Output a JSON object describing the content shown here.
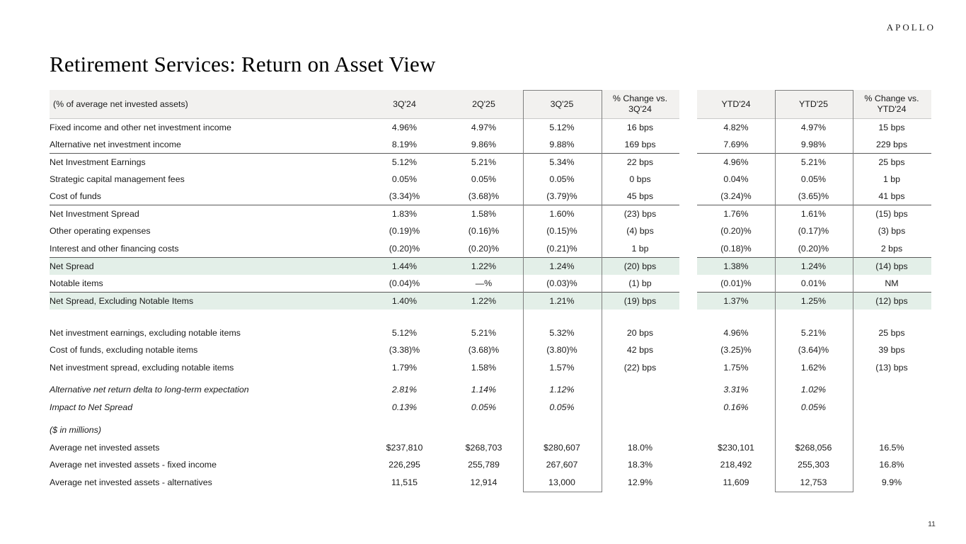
{
  "page": {
    "brand": "APOLLO",
    "title": "Retirement Services: Return on Asset View",
    "page_number": "11"
  },
  "colors": {
    "header_bg": "#f2f1ef",
    "highlight_green": "#e3efe8",
    "rule_dark": "#595959",
    "box_border": "#7f7f7f"
  },
  "table": {
    "header": {
      "label": "(% of average net invested assets)",
      "columns": [
        "3Q'24",
        "2Q'25",
        "3Q'25",
        "% Change vs. 3Q'24",
        "YTD'24",
        "YTD'25",
        "% Change vs. YTD'24"
      ]
    },
    "rows": [
      {
        "label": "Fixed income and other net investment income",
        "values": [
          "4.96%",
          "4.97%",
          "5.12%",
          "16 bps",
          "4.82%",
          "4.97%",
          "15 bps"
        ]
      },
      {
        "label": "Alternative net investment income",
        "values": [
          "8.19%",
          "9.86%",
          "9.88%",
          "169 bps",
          "7.69%",
          "9.98%",
          "229 bps"
        ]
      },
      {
        "label": "Net Investment Earnings",
        "bold_label": true,
        "topline": true,
        "values": [
          "5.12%",
          "5.21%",
          "5.34%",
          "22 bps",
          "4.96%",
          "5.21%",
          "25 bps"
        ]
      },
      {
        "label": "Strategic capital management fees",
        "values": [
          "0.05%",
          "0.05%",
          "0.05%",
          "0 bps",
          "0.04%",
          "0.05%",
          "1 bp"
        ]
      },
      {
        "label": "Cost of funds",
        "values": [
          "(3.34)%",
          "(3.68)%",
          "(3.79)%",
          "45 bps",
          "(3.24)%",
          "(3.65)%",
          "41 bps"
        ]
      },
      {
        "label": "Net Investment Spread",
        "bold_label": true,
        "bold_values": true,
        "topline": true,
        "values": [
          "1.83%",
          "1.58%",
          "1.60%",
          "(23) bps",
          "1.76%",
          "1.61%",
          "(15) bps"
        ]
      },
      {
        "label": "Other operating expenses",
        "values": [
          "(0.19)%",
          "(0.16)%",
          "(0.15)%",
          "(4) bps",
          "(0.20)%",
          "(0.17)%",
          "(3) bps"
        ]
      },
      {
        "label": "Interest and other financing costs",
        "values": [
          "(0.20)%",
          "(0.20)%",
          "(0.21)%",
          "1 bp",
          "(0.18)%",
          "(0.20)%",
          "2 bps"
        ]
      },
      {
        "label": "Net Spread",
        "bold_label": true,
        "bold_values": true,
        "green": true,
        "topline": true,
        "values": [
          "1.44%",
          "1.22%",
          "1.24%",
          "(20) bps",
          "1.38%",
          "1.24%",
          "(14) bps"
        ]
      },
      {
        "label": "Notable items",
        "values": [
          "(0.04)%",
          "—%",
          "(0.03)%",
          "(1) bp",
          "(0.01)%",
          "0.01%",
          "NM"
        ]
      },
      {
        "label": "Net Spread, Excluding Notable Items",
        "bold_label": true,
        "bold_values": true,
        "green": true,
        "topline": true,
        "values": [
          "1.40%",
          "1.22%",
          "1.21%",
          "(19) bps",
          "1.37%",
          "1.25%",
          "(12) bps"
        ]
      },
      {
        "spacer": 21
      },
      {
        "label": "Net investment earnings, excluding notable items",
        "values": [
          "5.12%",
          "5.21%",
          "5.32%",
          "20 bps",
          "4.96%",
          "5.21%",
          "25 bps"
        ]
      },
      {
        "label": "Cost of funds, excluding notable items",
        "values": [
          "(3.38)%",
          "(3.68)%",
          "(3.80)%",
          "42 bps",
          "(3.25)%",
          "(3.64)%",
          "39 bps"
        ]
      },
      {
        "label": "Net investment spread, excluding notable items",
        "values": [
          "1.79%",
          "1.58%",
          "1.57%",
          "(22) bps",
          "1.75%",
          "1.62%",
          "(13) bps"
        ]
      },
      {
        "spacer": 7
      },
      {
        "label": "Alternative net return delta to long-term expectation",
        "italic": true,
        "values": [
          "2.81%",
          "1.14%",
          "1.12%",
          "",
          "3.31%",
          "1.02%",
          ""
        ]
      },
      {
        "label": "Impact to Net Spread",
        "italic": true,
        "indent": true,
        "values": [
          "0.13%",
          "0.05%",
          "0.05%",
          "",
          "0.16%",
          "0.05%",
          ""
        ]
      },
      {
        "spacer": 8
      },
      {
        "label": "($ in millions)",
        "italic": true,
        "values": [
          "",
          "",
          "",
          "",
          "",
          "",
          ""
        ]
      },
      {
        "label": "Average net invested assets",
        "values": [
          "$237,810",
          "$268,703",
          "$280,607",
          "18.0%",
          "$230,101",
          "$268,056",
          "16.5%"
        ]
      },
      {
        "label": "Average net invested assets - fixed income",
        "indent": true,
        "values": [
          "226,295",
          "255,789",
          "267,607",
          "18.3%",
          "218,492",
          "255,303",
          "16.8%"
        ]
      },
      {
        "label": "Average net invested assets - alternatives",
        "indent": true,
        "values": [
          "11,515",
          "12,914",
          "13,000",
          "12.9%",
          "11,609",
          "12,753",
          "9.9%"
        ]
      }
    ]
  }
}
